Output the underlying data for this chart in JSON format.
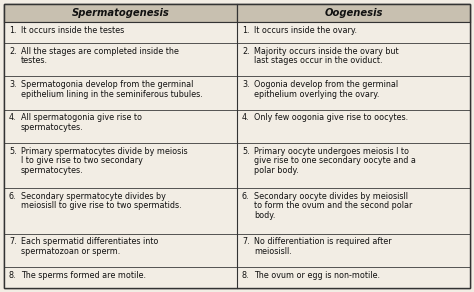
{
  "title_left": "Spermatogenesis",
  "title_right": "Oogenesis",
  "rows": [
    {
      "left_lines": [
        "It occurs inside the testes"
      ],
      "right_lines": [
        "It occurs inside the ovary."
      ]
    },
    {
      "left_lines": [
        "All the stages are completed inside the",
        "testes."
      ],
      "right_lines": [
        "Majority occurs inside the ovary but",
        "last stages occur in the oviduct."
      ]
    },
    {
      "left_lines": [
        "Spermatogonia develop from the germinal",
        "epithelium lining in the seminiferous tubules."
      ],
      "right_lines": [
        "Oogonia develop from the germinal",
        "epithelium overlying the ovary."
      ]
    },
    {
      "left_lines": [
        "All spermatogonia give rise to",
        "spermatocytes."
      ],
      "right_lines": [
        "Only few oogonia give rise to oocytes."
      ]
    },
    {
      "left_lines": [
        "Primary spermatocytes divide by meiosis",
        "I to give rise to two secondary",
        "spermatocytes."
      ],
      "right_lines": [
        "Primary oocyte undergoes meiosis I to",
        "give rise to one secondary oocyte and a",
        "polar body."
      ]
    },
    {
      "left_lines": [
        "Secondary spermatocyte divides by",
        "meiosisII to give rise to two spermatids."
      ],
      "right_lines": [
        "Secondary oocyte divides by meiosisII",
        "to form the ovum and the second polar",
        "body."
      ]
    },
    {
      "left_lines": [
        "Each spermatid differentiates into",
        "spermatozoan or sperm."
      ],
      "right_lines": [
        "No differentiation is required after",
        "meiosisII."
      ]
    },
    {
      "left_lines": [
        "The sperms formed are motile."
      ],
      "right_lines": [
        "The ovum or egg is non-motile."
      ]
    }
  ],
  "bg_color": "#f2ede4",
  "header_bg": "#c8c0b0",
  "border_color": "#333333",
  "text_color": "#111111",
  "font_size": 5.8,
  "header_font_size": 7.2
}
